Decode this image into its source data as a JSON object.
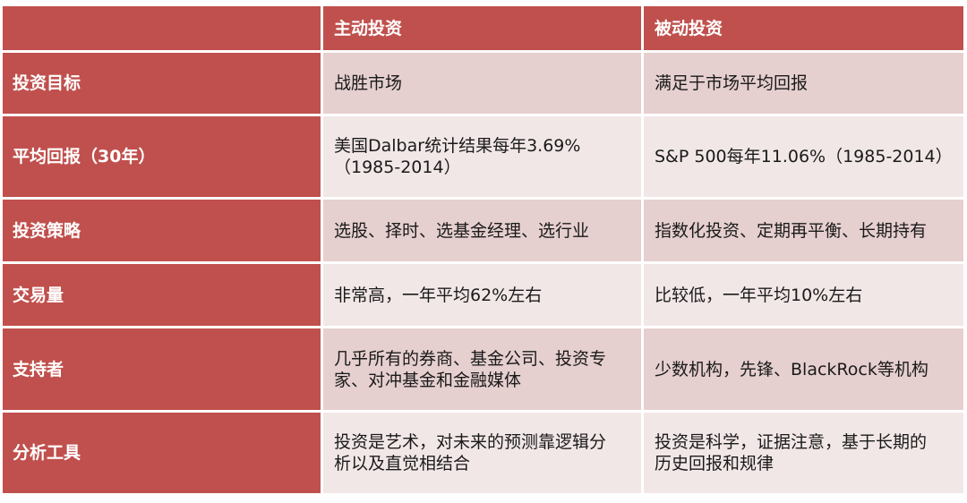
{
  "table": {
    "header": [
      "",
      "主动投资",
      "被动投资"
    ],
    "rows": [
      {
        "label": "投资目标",
        "active": "战胜市场",
        "passive": "满足于市场平均回报"
      },
      {
        "label": "平均回报（30年）",
        "active": "美国Dalbar统计结果每年3.69%\n（1985-2014）",
        "passive": "S&P 500每年11.06%（1985-2014）"
      },
      {
        "label": "投资策略",
        "active": "选股、择时、选基金经理、选行业",
        "passive": "指数化投资、定期再平衡、长期持有"
      },
      {
        "label": "交易量",
        "active": "非常高，一年平均62%左右",
        "passive": "比较低，一年平均10%左右"
      },
      {
        "label": "支持者",
        "active": "几乎所有的券商、基金公司、投资专\n家、对冲基金和金融媒体",
        "passive": "少数机构，先锋、BlackRock等机构"
      },
      {
        "label": "分析工具",
        "active": "投资是艺术，对未来的预测靠逻辑分\n析以及直觉相结合",
        "passive": "投资是科学，证据注意，基于长期的\n历史回报和规律"
      }
    ]
  },
  "colors": {
    "header_bg": "#c0504d",
    "row_odd_bg": "#e6cfcf",
    "row_even_bg": "#f2e7e7"
  }
}
